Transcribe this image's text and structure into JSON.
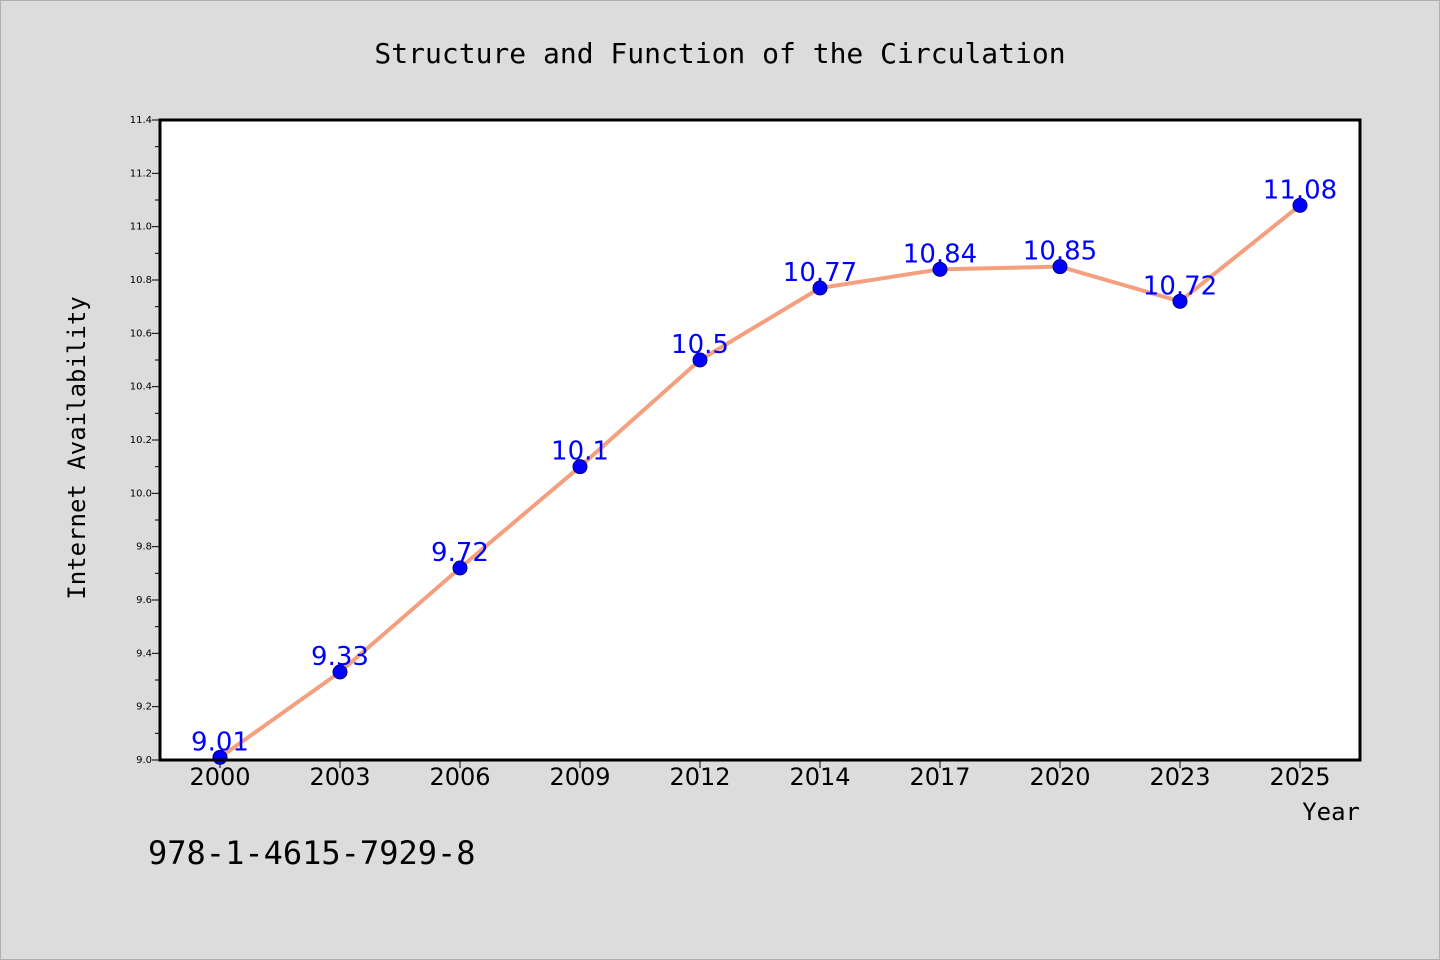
{
  "chart_data": {
    "type": "line",
    "title": "Structure and Function of the Circulation",
    "xlabel": "Year",
    "ylabel": "Internet Availability",
    "categories": [
      "2000",
      "2003",
      "2006",
      "2009",
      "2012",
      "2014",
      "2017",
      "2020",
      "2023",
      "2025"
    ],
    "series": [
      {
        "values": [
          9.01,
          9.33,
          9.72,
          10.1,
          10.5,
          10.77,
          10.84,
          10.85,
          10.72,
          11.08
        ]
      }
    ],
    "data_labels": [
      "9.01",
      "9.33",
      "9.72",
      "10.1",
      "10.5",
      "10.77",
      "10.84",
      "10.85",
      "10.72",
      "11.08"
    ],
    "ylim": [
      9.0,
      11.4
    ],
    "y_ticks": [
      "9.0",
      "9.2",
      "9.4",
      "9.6",
      "9.8",
      "10.0",
      "10.2",
      "10.4",
      "10.6",
      "10.8",
      "11.0",
      "11.2",
      "11.4"
    ],
    "grid": false,
    "legend": "none",
    "colors": {
      "line": "#f4a07e",
      "marker": "#0000ff",
      "marker_edge": "#000080",
      "data_label": "#0000ff",
      "plot_background": "#ffffff",
      "figure_background": "#dcdcdc"
    }
  },
  "footer": {
    "isbn": "978-1-4615-7929-8"
  }
}
